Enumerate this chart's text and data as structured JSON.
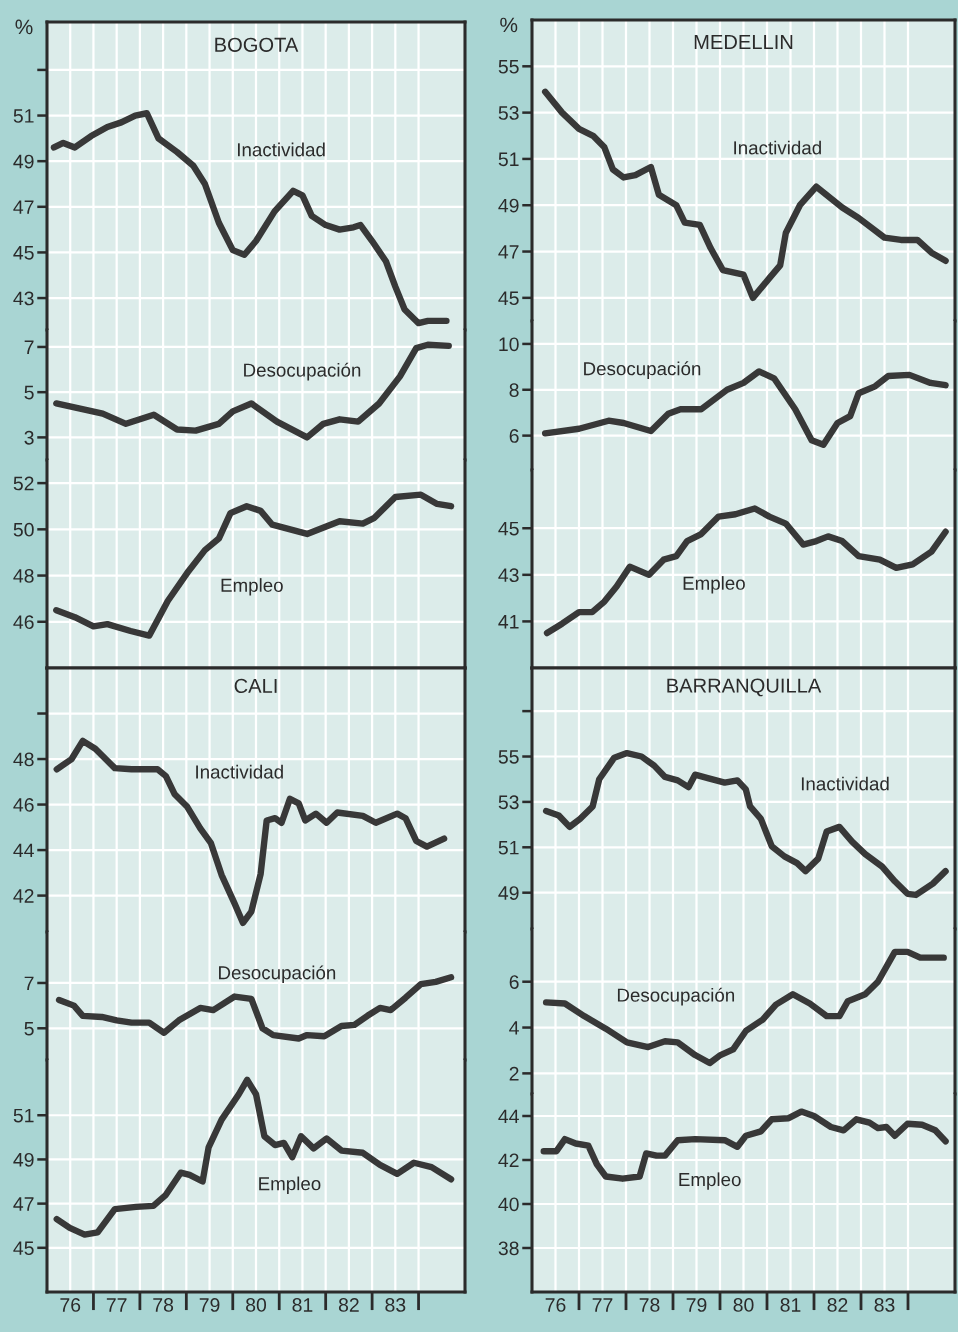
{
  "chart_data": [
    {
      "type": "line",
      "title": "BOGOTA",
      "ylabel": "%",
      "x": [
        75.65,
        75.85,
        76.1,
        76.45,
        76.8,
        77.1,
        77.4,
        77.65,
        77.9,
        78.3,
        78.65,
        78.9,
        79.2,
        79.5,
        79.75,
        80.0,
        80.4,
        80.8,
        81.0,
        81.2,
        81.5,
        81.8,
        82.1,
        82.25,
        82.5,
        82.8,
        83.0,
        83.2,
        83.5,
        83.7,
        84.1
      ],
      "series": [
        {
          "name": "Inactividad",
          "color": "#383838",
          "values": [
            49.6,
            49.8,
            49.6,
            50.1,
            50.5,
            50.7,
            51.0,
            51.1,
            50.0,
            49.4,
            48.8,
            48.0,
            46.3,
            45.1,
            44.9,
            45.5,
            46.8,
            47.7,
            47.5,
            46.6,
            46.2,
            46.0,
            46.1,
            46.2,
            45.5,
            44.6,
            43.5,
            42.5,
            41.9,
            42.0,
            42.0
          ]
        }
      ],
      "xlim": [
        75.5,
        84.5
      ],
      "xticks": [
        76,
        77,
        78,
        79,
        80,
        81,
        82,
        83,
        {
          "value": 76.5,
          "label": null
        },
        {
          "value": 77.5,
          "label": null
        },
        {
          "value": 78.5,
          "label": null
        },
        {
          "value": 79.5,
          "label": null
        },
        {
          "value": 80.5,
          "label": null
        },
        {
          "value": 81.5,
          "label": null
        },
        {
          "value": 82.5,
          "label": null
        },
        {
          "value": 83.5,
          "label": null
        }
      ],
      "ylim": [
        41.6,
        55.1
      ],
      "yticks": [
        43,
        45,
        47,
        49,
        51,
        {
          "value": 53,
          "label": null
        }
      ],
      "tick_labels": "y",
      "grid": true
    },
    {
      "type": "line",
      "x": [
        75.7,
        76.7,
        77.2,
        77.8,
        78.3,
        78.7,
        79.2,
        79.5,
        79.9,
        80.45,
        81.1,
        81.45,
        81.8,
        82.2,
        82.65,
        83.1,
        83.45,
        83.7,
        84.15
      ],
      "series": [
        {
          "name": "Desocupación",
          "color": "#383838",
          "values": [
            4.5,
            4.05,
            3.6,
            4.0,
            3.35,
            3.3,
            3.6,
            4.15,
            4.5,
            3.7,
            3.0,
            3.6,
            3.8,
            3.7,
            4.5,
            5.7,
            6.95,
            7.1,
            7.05
          ]
        }
      ],
      "xlim": [
        75.5,
        84.5
      ],
      "xticks": [
        76,
        77,
        78,
        79,
        80,
        81,
        82,
        83,
        {
          "value": 76.5,
          "label": null
        },
        {
          "value": 77.5,
          "label": null
        },
        {
          "value": 78.5,
          "label": null
        },
        {
          "value": 79.5,
          "label": null
        },
        {
          "value": 80.5,
          "label": null
        },
        {
          "value": 81.5,
          "label": null
        },
        {
          "value": 82.5,
          "label": null
        },
        {
          "value": 83.5,
          "label": null
        }
      ],
      "ylim": [
        2,
        7.75
      ],
      "yticks": [
        3,
        5,
        7
      ],
      "tick_labels": "y",
      "grid": true
    },
    {
      "type": "line",
      "x": [
        75.7,
        76.1,
        76.5,
        76.8,
        77.3,
        77.7,
        78.1,
        78.55,
        78.9,
        79.2,
        79.45,
        79.8,
        80.1,
        80.35,
        81.1,
        81.8,
        82.3,
        82.55,
        83.0,
        83.55,
        83.9,
        84.2
      ],
      "series": [
        {
          "name": "Empleo",
          "color": "#383838",
          "values": [
            46.5,
            46.2,
            45.8,
            45.9,
            45.6,
            45.4,
            46.9,
            48.2,
            49.1,
            49.6,
            50.7,
            51.0,
            50.8,
            50.2,
            49.8,
            50.35,
            50.25,
            50.5,
            51.4,
            51.5,
            51.1,
            51.0
          ]
        }
      ],
      "xlim": [
        75.5,
        84.5
      ],
      "xticks": [
        76,
        77,
        78,
        79,
        80,
        81,
        82,
        83,
        {
          "value": 76.5,
          "label": null
        },
        {
          "value": 77.5,
          "label": null
        },
        {
          "value": 78.5,
          "label": null
        },
        {
          "value": 79.5,
          "label": null
        },
        {
          "value": 80.5,
          "label": null
        },
        {
          "value": 81.5,
          "label": null
        },
        {
          "value": 82.5,
          "label": null
        },
        {
          "value": 83.5,
          "label": null
        }
      ],
      "ylim": [
        44,
        53
      ],
      "yticks": [
        46,
        48,
        50,
        52
      ],
      "tick_labels": "y",
      "grid": true
    },
    {
      "type": "line",
      "title": "MEDELLIN",
      "ylabel": "%",
      "x": [
        75.78,
        76.14,
        76.5,
        76.8,
        77.04,
        77.22,
        77.45,
        77.7,
        78.03,
        78.2,
        78.57,
        78.75,
        79.07,
        79.3,
        79.56,
        80.0,
        80.2,
        80.55,
        80.78,
        80.9,
        81.2,
        81.55,
        82.1,
        82.45,
        83.0,
        83.35,
        83.7,
        84.0,
        84.3
      ],
      "series": [
        {
          "name": "Inactividad",
          "color": "#383838",
          "values": [
            53.9,
            53.0,
            52.3,
            52.0,
            51.5,
            50.55,
            50.2,
            50.3,
            50.65,
            49.45,
            49.0,
            48.25,
            48.15,
            47.15,
            46.2,
            46.0,
            45.0,
            45.85,
            46.4,
            47.8,
            49.0,
            49.8,
            48.9,
            48.45,
            47.6,
            47.5,
            47.5,
            46.95,
            46.6
          ]
        }
      ],
      "xlim": [
        75.5,
        84.5
      ],
      "xticks": [
        76,
        77,
        78,
        79,
        80,
        81,
        82,
        83,
        {
          "value": 76.5,
          "label": null
        },
        {
          "value": 77.5,
          "label": null
        },
        {
          "value": 78.5,
          "label": null
        },
        {
          "value": 79.5,
          "label": null
        },
        {
          "value": 80.5,
          "label": null
        },
        {
          "value": 81.5,
          "label": null
        },
        {
          "value": 82.5,
          "label": null
        },
        {
          "value": 83.5,
          "label": null
        }
      ],
      "ylim": [
        44,
        57
      ],
      "yticks": [
        45,
        47,
        49,
        51,
        53,
        55
      ],
      "tick_labels": "y",
      "grid": true
    },
    {
      "type": "line",
      "x": [
        75.78,
        76.5,
        77.13,
        77.45,
        78.03,
        78.4,
        78.66,
        79.1,
        79.65,
        80.0,
        80.33,
        80.65,
        81.1,
        81.45,
        81.7,
        82.0,
        82.27,
        82.45,
        82.8,
        83.08,
        83.53,
        83.98,
        84.3
      ],
      "series": [
        {
          "name": "Desocupación",
          "color": "#383838",
          "values": [
            6.1,
            6.3,
            6.65,
            6.55,
            6.2,
            6.95,
            7.15,
            7.15,
            8.0,
            8.3,
            8.8,
            8.5,
            7.15,
            5.8,
            5.6,
            6.55,
            6.85,
            7.85,
            8.15,
            8.6,
            8.65,
            8.3,
            8.2
          ]
        }
      ],
      "xlim": [
        75.5,
        84.5
      ],
      "xticks": [
        76,
        77,
        78,
        79,
        80,
        81,
        82,
        83,
        {
          "value": 76.5,
          "label": null
        },
        {
          "value": 77.5,
          "label": null
        },
        {
          "value": 78.5,
          "label": null
        },
        {
          "value": 79.5,
          "label": null
        },
        {
          "value": 80.5,
          "label": null
        },
        {
          "value": 81.5,
          "label": null
        },
        {
          "value": 82.5,
          "label": null
        },
        {
          "value": 83.5,
          "label": null
        }
      ],
      "ylim": [
        4.5,
        11
      ],
      "yticks": [
        6,
        8,
        10
      ],
      "tick_labels": "y",
      "grid": true
    },
    {
      "type": "line",
      "x": [
        75.82,
        76.14,
        76.5,
        76.78,
        77.04,
        77.3,
        77.58,
        77.99,
        78.3,
        78.57,
        78.8,
        79.1,
        79.47,
        79.83,
        80.24,
        80.55,
        80.9,
        81.27,
        81.55,
        81.8,
        82.1,
        82.45,
        82.9,
        83.25,
        83.6,
        84.0,
        84.3
      ],
      "series": [
        {
          "name": "Empleo",
          "color": "#383838",
          "values": [
            40.5,
            40.9,
            41.4,
            41.4,
            41.85,
            42.5,
            43.35,
            43.0,
            43.65,
            43.8,
            44.45,
            44.75,
            45.5,
            45.6,
            45.85,
            45.5,
            45.2,
            44.3,
            44.45,
            44.65,
            44.45,
            43.8,
            43.65,
            43.3,
            43.45,
            44.0,
            44.85
          ]
        }
      ],
      "xlim": [
        75.5,
        84.5
      ],
      "xticks": [
        76,
        77,
        78,
        79,
        80,
        81,
        82,
        83,
        {
          "value": 76.5,
          "label": null
        },
        {
          "value": 77.5,
          "label": null
        },
        {
          "value": 78.5,
          "label": null
        },
        {
          "value": 79.5,
          "label": null
        },
        {
          "value": 80.5,
          "label": null
        },
        {
          "value": 81.5,
          "label": null
        },
        {
          "value": 82.5,
          "label": null
        },
        {
          "value": 83.5,
          "label": null
        }
      ],
      "ylim": [
        39,
        47.5
      ],
      "yticks": [
        41,
        43,
        45
      ],
      "tick_labels": "y",
      "grid": true
    },
    {
      "type": "line",
      "title": "CALI",
      "x": [
        75.71,
        76.03,
        76.27,
        76.54,
        76.96,
        77.32,
        77.88,
        78.06,
        78.25,
        78.52,
        78.8,
        79.03,
        79.26,
        79.54,
        79.72,
        79.9,
        80.1,
        80.23,
        80.41,
        80.55,
        80.73,
        80.92,
        81.06,
        81.29,
        81.52,
        81.75,
        82.3,
        82.58,
        83.04,
        83.22,
        83.45,
        83.68,
        84.05
      ],
      "series": [
        {
          "name": "Inactividad",
          "color": "#383838",
          "values": [
            47.55,
            48.0,
            48.8,
            48.45,
            47.6,
            47.55,
            47.55,
            47.25,
            46.45,
            45.9,
            44.95,
            44.3,
            42.9,
            41.65,
            40.8,
            41.3,
            42.95,
            45.3,
            45.4,
            45.2,
            46.25,
            46.05,
            45.3,
            45.6,
            45.2,
            45.65,
            45.5,
            45.2,
            45.6,
            45.4,
            44.4,
            44.15,
            44.5
          ]
        }
      ],
      "xlim": [
        75.5,
        84.5
      ],
      "xticks": [
        76,
        77,
        78,
        79,
        80,
        81,
        82,
        83,
        {
          "value": 76.5,
          "label": null
        },
        {
          "value": 77.5,
          "label": null
        },
        {
          "value": 78.5,
          "label": null
        },
        {
          "value": 79.5,
          "label": null
        },
        {
          "value": 80.5,
          "label": null
        },
        {
          "value": 81.5,
          "label": null
        },
        {
          "value": 82.5,
          "label": null
        },
        {
          "value": 83.5,
          "label": null
        }
      ],
      "ylim": [
        40.4,
        52
      ],
      "yticks": [
        42,
        44,
        46,
        48,
        {
          "value": 50,
          "label": null
        }
      ],
      "tick_labels": "y",
      "grid": true
    },
    {
      "type": "line",
      "x": [
        75.76,
        76.08,
        76.27,
        76.68,
        77.0,
        77.32,
        77.7,
        78.02,
        78.34,
        78.8,
        79.08,
        79.54,
        79.9,
        80.14,
        80.37,
        80.92,
        81.1,
        81.47,
        81.84,
        82.12,
        82.4,
        82.67,
        82.9,
        83.22,
        83.55,
        83.87,
        84.2
      ],
      "series": [
        {
          "name": "Desocupación",
          "color": "#383838",
          "values": [
            6.25,
            6.0,
            5.55,
            5.5,
            5.35,
            5.25,
            5.25,
            4.8,
            5.35,
            5.9,
            5.8,
            6.4,
            6.3,
            5.0,
            4.7,
            4.55,
            4.7,
            4.65,
            5.1,
            5.15,
            5.55,
            5.9,
            5.8,
            6.35,
            6.95,
            7.05,
            7.25
          ]
        }
      ],
      "xlim": [
        75.5,
        84.5
      ],
      "xticks": [
        76,
        77,
        78,
        79,
        80,
        81,
        82,
        83,
        {
          "value": 76.5,
          "label": null
        },
        {
          "value": 77.5,
          "label": null
        },
        {
          "value": 78.5,
          "label": null
        },
        {
          "value": 79.5,
          "label": null
        },
        {
          "value": 80.5,
          "label": null
        },
        {
          "value": 81.5,
          "label": null
        },
        {
          "value": 82.5,
          "label": null
        },
        {
          "value": 83.5,
          "label": null
        }
      ],
      "ylim": [
        3.6,
        9.25
      ],
      "yticks": [
        5,
        7
      ],
      "tick_labels": "y",
      "grid": true
    },
    {
      "type": "line",
      "x": [
        75.71,
        75.99,
        76.31,
        76.59,
        76.96,
        77.42,
        77.79,
        78.06,
        78.38,
        78.57,
        78.85,
        78.98,
        79.26,
        79.63,
        79.81,
        80.0,
        80.18,
        80.41,
        80.6,
        80.78,
        80.97,
        81.24,
        81.52,
        81.84,
        82.3,
        82.67,
        83.04,
        83.4,
        83.78,
        84.2
      ],
      "series": [
        {
          "name": "Empleo",
          "color": "#383838",
          "values": [
            46.3,
            45.9,
            45.6,
            45.7,
            46.75,
            46.85,
            46.9,
            47.4,
            48.4,
            48.3,
            48.0,
            49.55,
            50.8,
            51.95,
            52.6,
            51.95,
            50.05,
            49.65,
            49.75,
            49.1,
            50.05,
            49.5,
            49.95,
            49.4,
            49.3,
            48.75,
            48.35,
            48.85,
            48.65,
            48.1
          ]
        }
      ],
      "xlim": [
        75.5,
        84.5
      ],
      "xticks": [
        76,
        77,
        78,
        79,
        80,
        81,
        82,
        83,
        {
          "value": 76.5,
          "label": null
        },
        {
          "value": 77.5,
          "label": null
        },
        {
          "value": 78.5,
          "label": null
        },
        {
          "value": 79.5,
          "label": null
        },
        {
          "value": 80.5,
          "label": null
        },
        {
          "value": 81.5,
          "label": null
        },
        {
          "value": 82.5,
          "label": null
        },
        {
          "value": 83.5,
          "label": null
        }
      ],
      "ylim": [
        43,
        53.5
      ],
      "yticks": [
        45,
        47,
        49,
        51
      ],
      "grid": true
    },
    {
      "type": "line",
      "title": "BARRANQUILLA",
      "x": [
        75.8,
        76.07,
        76.3,
        76.52,
        76.79,
        76.93,
        77.25,
        77.52,
        77.83,
        78.1,
        78.33,
        78.6,
        78.83,
        78.97,
        79.24,
        79.6,
        79.87,
        80.05,
        80.14,
        80.37,
        80.6,
        80.87,
        81.14,
        81.32,
        81.59,
        81.77,
        82.04,
        82.31,
        82.59,
        82.95,
        83.22,
        83.49,
        83.67,
        84.03,
        84.3
      ],
      "series": [
        {
          "name": "Inactividad",
          "color": "#383838",
          "values": [
            52.6,
            52.4,
            51.9,
            52.25,
            52.8,
            54.0,
            54.95,
            55.15,
            55.0,
            54.6,
            54.1,
            53.95,
            53.65,
            54.2,
            54.05,
            53.85,
            53.95,
            53.55,
            52.8,
            52.25,
            51.05,
            50.6,
            50.3,
            49.95,
            50.5,
            51.7,
            51.9,
            51.25,
            50.7,
            50.15,
            49.5,
            48.95,
            48.9,
            49.4,
            49.95
          ]
        }
      ],
      "xlim": [
        75.5,
        84.5
      ],
      "xticks": [
        76,
        77,
        78,
        79,
        80,
        81,
        82,
        83,
        {
          "value": 76.5,
          "label": null
        },
        {
          "value": 77.5,
          "label": null
        },
        {
          "value": 78.5,
          "label": null
        },
        {
          "value": 79.5,
          "label": null
        },
        {
          "value": 80.5,
          "label": null
        },
        {
          "value": 81.5,
          "label": null
        },
        {
          "value": 82.5,
          "label": null
        },
        {
          "value": 83.5,
          "label": null
        }
      ],
      "ylim": [
        47.4,
        58.9
      ],
      "yticks": [
        49,
        51,
        53,
        55,
        {
          "value": 57,
          "label": null
        }
      ],
      "tick_labels": "y",
      "grid": true
    },
    {
      "type": "line",
      "x": [
        75.8,
        76.2,
        76.61,
        77.07,
        77.52,
        77.97,
        78.33,
        78.6,
        78.97,
        79.28,
        79.51,
        79.78,
        80.05,
        80.41,
        80.69,
        81.05,
        81.41,
        81.77,
        82.04,
        82.22,
        82.59,
        82.86,
        83.22,
        83.49,
        83.76,
        84.26
      ],
      "series": [
        {
          "name": "Desocupación",
          "color": "#383838",
          "values": [
            5.1,
            5.05,
            4.5,
            3.95,
            3.35,
            3.15,
            3.4,
            3.35,
            2.8,
            2.45,
            2.8,
            3.05,
            3.85,
            4.35,
            5.0,
            5.45,
            5.05,
            4.5,
            4.5,
            5.15,
            5.45,
            6.0,
            7.3,
            7.3,
            7.05,
            7.05
          ]
        }
      ],
      "xlim": [
        75.5,
        84.5
      ],
      "xticks": [
        76,
        77,
        78,
        79,
        80,
        81,
        82,
        83,
        {
          "value": 76.5,
          "label": null
        },
        {
          "value": 77.5,
          "label": null
        },
        {
          "value": 78.5,
          "label": null
        },
        {
          "value": 79.5,
          "label": null
        },
        {
          "value": 80.5,
          "label": null
        },
        {
          "value": 81.5,
          "label": null
        },
        {
          "value": 82.5,
          "label": null
        },
        {
          "value": 83.5,
          "label": null
        }
      ],
      "ylim": [
        1.1,
        8.3
      ],
      "yticks": [
        2,
        4,
        6
      ],
      "tick_labels": "y",
      "grid": true
    },
    {
      "type": "line",
      "x": [
        75.75,
        76.02,
        76.2,
        76.43,
        76.7,
        76.88,
        77.07,
        77.43,
        77.79,
        77.93,
        78.15,
        78.33,
        78.6,
        78.97,
        79.6,
        79.87,
        80.05,
        80.37,
        80.6,
        80.96,
        81.23,
        81.5,
        81.86,
        82.13,
        82.4,
        82.68,
        82.86,
        83.04,
        83.22,
        83.49,
        83.8,
        84.08,
        84.3
      ],
      "series": [
        {
          "name": "Empleo",
          "color": "#383838",
          "values": [
            42.4,
            42.4,
            42.95,
            42.75,
            42.65,
            41.8,
            41.25,
            41.15,
            41.25,
            42.3,
            42.2,
            42.2,
            42.9,
            42.95,
            42.9,
            42.6,
            43.1,
            43.3,
            43.85,
            43.9,
            44.2,
            44.0,
            43.5,
            43.35,
            43.85,
            43.7,
            43.45,
            43.5,
            43.1,
            43.65,
            43.6,
            43.35,
            42.85
          ]
        }
      ],
      "xlim": [
        75.5,
        84.5
      ],
      "xticks": [
        76,
        77,
        78,
        79,
        80,
        81,
        82,
        83,
        {
          "value": 76.5,
          "label": null
        },
        {
          "value": 77.5,
          "label": null
        },
        {
          "value": 78.5,
          "label": null
        },
        {
          "value": 79.5,
          "label": null
        },
        {
          "value": 80.5,
          "label": null
        },
        {
          "value": 81.5,
          "label": null
        },
        {
          "value": 82.5,
          "label": null
        },
        {
          "value": 83.5,
          "label": null
        }
      ],
      "ylim": [
        36,
        45
      ],
      "yticks": [
        38,
        40,
        42,
        44
      ],
      "grid": true
    }
  ]
}
